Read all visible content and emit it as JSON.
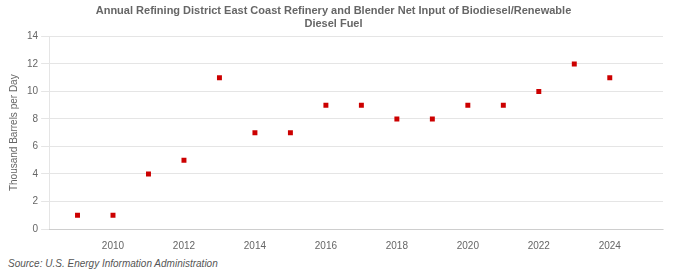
{
  "chart_data": {
    "type": "scatter",
    "title": "Annual Refining District East Coast Refinery and Blender Net Input of Biodiesel/Renewable\nDiesel Fuel",
    "ylabel": "Thousand Barrels per Day",
    "source": "Source: U.S. Energy Information Administration",
    "x": [
      2009,
      2010,
      2011,
      2012,
      2013,
      2014,
      2015,
      2016,
      2017,
      2018,
      2019,
      2020,
      2021,
      2022,
      2023,
      2024
    ],
    "values": [
      1.0,
      1.0,
      4.0,
      5.0,
      11.0,
      7.0,
      7.0,
      9.0,
      9.0,
      8.0,
      8.0,
      9.0,
      9.0,
      10.0,
      12.0,
      11.0
    ],
    "color": "#cc0000",
    "marker": "square",
    "xlim": [
      2008.2,
      2025.5
    ],
    "xticks": [
      2010,
      2012,
      2014,
      2016,
      2018,
      2020,
      2022,
      2024
    ],
    "ylim": [
      0,
      14
    ],
    "yticks": [
      0,
      2,
      4,
      6,
      8,
      10,
      12,
      14
    ],
    "grid": "y"
  }
}
